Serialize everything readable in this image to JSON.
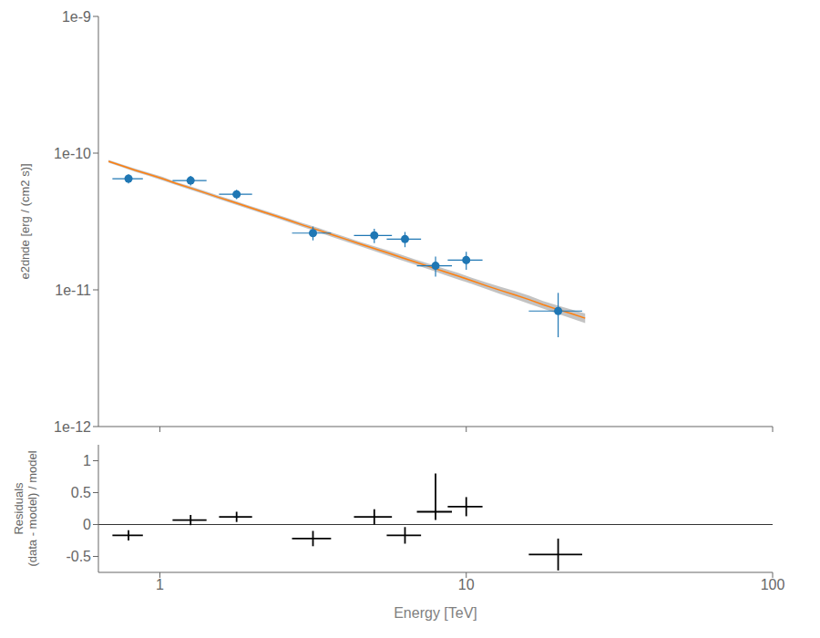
{
  "chart_data": [
    {
      "type": "scatter",
      "ylabel": "e2dnde [erg / (cm2 s)]",
      "log": true,
      "grid": false,
      "tick_labels": "y",
      "xlim": [
        0.63,
        100
      ],
      "xticks": [
        1,
        10,
        100
      ],
      "ylim": [
        1e-12,
        1e-09
      ],
      "yticks": [
        {
          "value": 1e-12,
          "label": "1e-12"
        },
        {
          "value": 1e-11,
          "label": "1e-11"
        },
        {
          "value": 1e-10,
          "label": "1e-10"
        },
        {
          "value": 1e-09,
          "label": "1e-9"
        }
      ],
      "series": [
        {
          "type": "area",
          "color": "#aaaaaa",
          "x": [
            0.68,
            0.75,
            0.83,
            0.92,
            1.02,
            1.13,
            1.26,
            1.4,
            1.55,
            1.73,
            1.92,
            2.14,
            2.38,
            2.64,
            2.94,
            3.27,
            3.63,
            4.04,
            4.49,
            4.99,
            5.55,
            6.17,
            6.86,
            7.63,
            8.48,
            9.43,
            10.48,
            11.65,
            12.95,
            14.4,
            16.01,
            17.8,
            19.79,
            22.0,
            24.44
          ],
          "lower": [
            8.5e-11,
            7.9e-11,
            7.3e-11,
            6.8e-11,
            6.3e-11,
            5.85e-11,
            5.4e-11,
            5e-11,
            4.62e-11,
            4.27e-11,
            3.95e-11,
            3.65e-11,
            3.37e-11,
            3.11e-11,
            2.87e-11,
            2.65e-11,
            2.45e-11,
            2.26e-11,
            2.09e-11,
            1.93e-11,
            1.78e-11,
            1.64e-11,
            1.52e-11,
            1.4e-11,
            1.29e-11,
            1.19e-11,
            1.1e-11,
            1.01e-11,
            9.3e-12,
            8.6e-12,
            7.9e-12,
            7.3e-12,
            6.7e-12,
            6.2e-12,
            5.7e-12
          ],
          "upper": [
            8.9e-11,
            8.3e-11,
            7.7e-11,
            7.2e-11,
            6.7e-11,
            6.15e-11,
            5.7e-11,
            5.28e-11,
            4.9e-11,
            4.53e-11,
            4.19e-11,
            3.87e-11,
            3.59e-11,
            3.33e-11,
            3.07e-11,
            2.85e-11,
            2.63e-11,
            2.44e-11,
            2.25e-11,
            2.09e-11,
            1.94e-11,
            1.8e-11,
            1.66e-11,
            1.54e-11,
            1.43e-11,
            1.33e-11,
            1.22e-11,
            1.13e-11,
            1.05e-11,
            9.8e-12,
            9.1e-12,
            8.3e-12,
            7.7e-12,
            7.2e-12,
            6.7e-12
          ]
        },
        {
          "type": "line",
          "color": "#ff7f0e",
          "x": [
            0.68,
            0.75,
            0.83,
            0.92,
            1.02,
            1.13,
            1.26,
            1.4,
            1.55,
            1.73,
            1.92,
            2.14,
            2.38,
            2.64,
            2.94,
            3.27,
            3.63,
            4.04,
            4.49,
            4.99,
            5.55,
            6.17,
            6.86,
            7.63,
            8.48,
            9.43,
            10.48,
            11.65,
            12.95,
            14.4,
            16.01,
            17.8,
            19.79,
            22.0,
            24.44
          ],
          "values": [
            8.7e-11,
            8.1e-11,
            7.5e-11,
            7e-11,
            6.5e-11,
            6e-11,
            5.55e-11,
            5.14e-11,
            4.76e-11,
            4.4e-11,
            4.07e-11,
            3.76e-11,
            3.48e-11,
            3.22e-11,
            2.97e-11,
            2.75e-11,
            2.54e-11,
            2.35e-11,
            2.17e-11,
            2.01e-11,
            1.86e-11,
            1.72e-11,
            1.59e-11,
            1.47e-11,
            1.36e-11,
            1.26e-11,
            1.16e-11,
            1.07e-11,
            9.9e-12,
            9.2e-12,
            8.5e-12,
            7.8e-12,
            7.2e-12,
            6.7e-12,
            6.2e-12
          ]
        },
        {
          "type": "scatter",
          "color": "#1f77b4",
          "marker": "circle",
          "x": [
            0.79,
            1.26,
            1.78,
            3.16,
            5.01,
            6.31,
            7.94,
            10.0,
            19.95
          ],
          "values": [
            6.5e-11,
            6.3e-11,
            5e-11,
            2.6e-11,
            2.5e-11,
            2.35e-11,
            1.5e-11,
            1.65e-11,
            7e-12
          ],
          "x_error_lo": [
            0.09,
            0.16,
            0.22,
            0.46,
            0.71,
            0.81,
            1.04,
            1.3,
            3.95
          ],
          "x_error_hi": [
            0.09,
            0.16,
            0.22,
            0.46,
            0.71,
            0.81,
            1.04,
            1.3,
            3.95
          ],
          "error_lo": [
            5e-12,
            5e-12,
            4e-12,
            3e-12,
            3e-12,
            3e-12,
            2.5e-12,
            2.5e-12,
            2.5e-12
          ],
          "error_hi": [
            5e-12,
            5e-12,
            4e-12,
            3e-12,
            3e-12,
            3e-12,
            2.5e-12,
            2.5e-12,
            2.5e-12
          ]
        }
      ]
    },
    {
      "type": "scatter",
      "xlabel": "Energy [TeV]",
      "ylabel": "Residuals\n(data - model) / model",
      "log": "x",
      "grid": false,
      "xlim": [
        0.63,
        100
      ],
      "xticks": [
        1,
        10,
        100
      ],
      "ylim": [
        -0.75,
        1.25
      ],
      "yticks": [
        -0.5,
        0,
        0.5,
        1
      ],
      "hlines": [
        {
          "value": 0,
          "color": "black"
        }
      ],
      "series": [
        {
          "type": "scatter",
          "color": "black",
          "marker": "none",
          "x": [
            0.79,
            1.26,
            1.78,
            3.16,
            5.01,
            6.31,
            7.94,
            10.0,
            19.95
          ],
          "values": [
            -0.17,
            0.07,
            0.12,
            -0.22,
            0.12,
            -0.17,
            0.2,
            0.28,
            -0.47
          ],
          "x_error_lo": [
            0.09,
            0.16,
            0.22,
            0.46,
            0.71,
            0.81,
            1.04,
            1.3,
            3.95
          ],
          "x_error_hi": [
            0.09,
            0.16,
            0.22,
            0.46,
            0.71,
            0.81,
            1.04,
            1.3,
            3.95
          ],
          "error_lo": [
            0.08,
            0.08,
            0.08,
            0.12,
            0.12,
            0.13,
            0.13,
            0.15,
            0.25
          ],
          "error_hi": [
            0.08,
            0.08,
            0.08,
            0.12,
            0.12,
            0.13,
            0.6,
            0.15,
            0.25
          ]
        }
      ]
    }
  ]
}
